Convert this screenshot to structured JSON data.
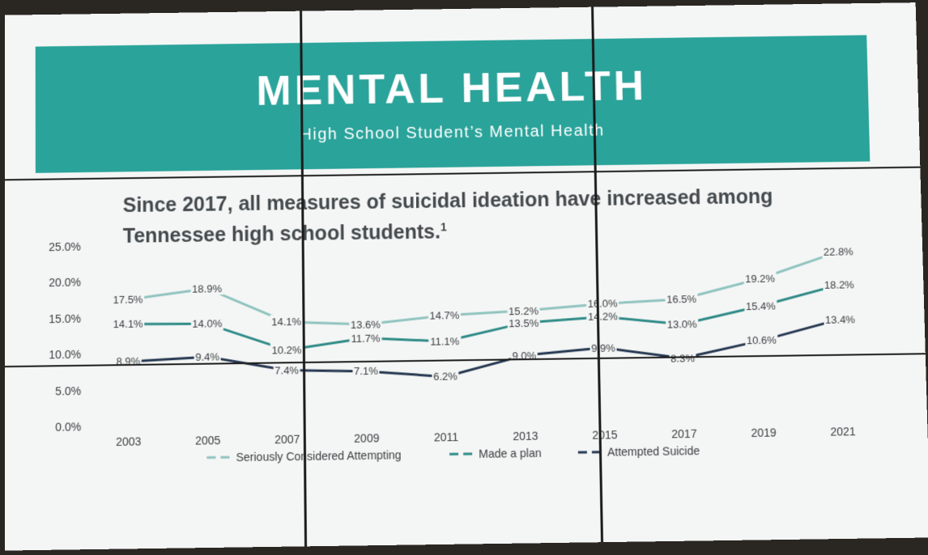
{
  "banner": {
    "title": "MENTAL HEALTH",
    "subtitle": "High School Student’s Mental Health"
  },
  "headline": {
    "text": "Since 2017, all measures of suicidal ideation have increased among Tennessee high school students.",
    "footnote": "1"
  },
  "chart_data": {
    "type": "line",
    "title": "",
    "xlabel": "",
    "ylabel": "",
    "categories": [
      "2003",
      "2005",
      "2007",
      "2009",
      "2011",
      "2013",
      "2015",
      "2017",
      "2019",
      "2021"
    ],
    "y_ticks": [
      "25.0%",
      "20.0%",
      "15.0%",
      "10.0%",
      "5.0%",
      "0.0%"
    ],
    "ylim": [
      0,
      25
    ],
    "grid": false,
    "legend_position": "bottom",
    "series": [
      {
        "name": "Seriously Considered Attempting",
        "color": "#8fc3bf",
        "values": [
          17.5,
          18.9,
          14.1,
          13.6,
          14.7,
          15.2,
          16.0,
          16.5,
          19.2,
          22.8
        ],
        "labels": [
          "17.5%",
          "18.9%",
          "14.1%",
          "13.6%",
          "14.7%",
          "15.2%",
          "16.0%",
          "16.5%",
          "19.2%",
          "22.8%"
        ]
      },
      {
        "name": "Made a plan",
        "color": "#2d8a86",
        "values": [
          14.1,
          14.0,
          10.2,
          11.7,
          11.1,
          13.5,
          14.2,
          13.0,
          15.4,
          18.2
        ],
        "labels": [
          "14.1%",
          "14.0%",
          "10.2%",
          "11.7%",
          "11.1%",
          "13.5%",
          "14.2%",
          "13.0%",
          "15.4%",
          "18.2%"
        ]
      },
      {
        "name": "Attempted Suicide",
        "color": "#243650",
        "values": [
          8.9,
          9.4,
          7.4,
          7.1,
          6.2,
          9.0,
          9.9,
          8.3,
          10.6,
          13.4
        ],
        "labels": [
          "8.9%",
          "9.4%",
          "7.4%",
          "7.1%",
          "6.2%",
          "9.0%",
          "9.9%",
          "8.3%",
          "10.6%",
          "13.4%"
        ]
      }
    ]
  }
}
